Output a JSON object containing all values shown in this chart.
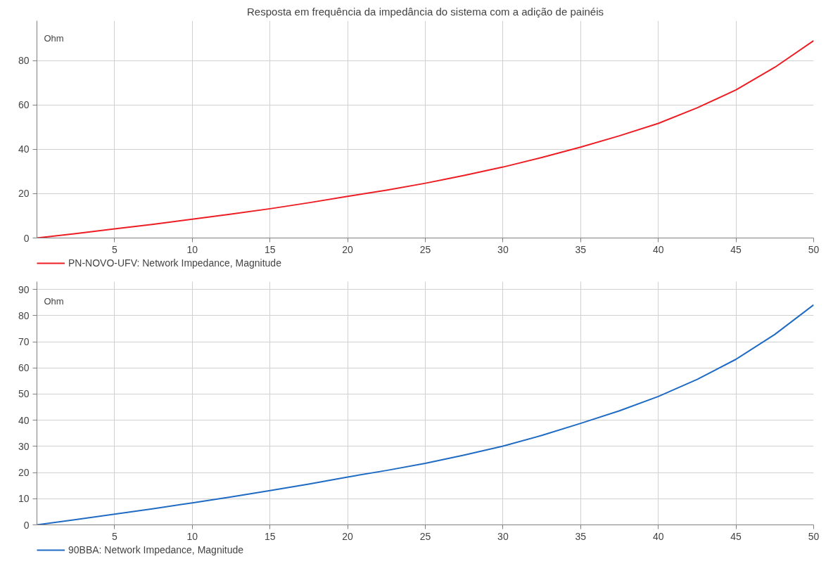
{
  "chart_data": [
    {
      "type": "line",
      "title": "Resposta em frequência da impedância do sistema com a adição de painéis",
      "ylabel": "Ohm",
      "x": [
        0,
        2.5,
        5,
        7.5,
        10,
        12.5,
        15,
        17.5,
        20,
        22.5,
        25,
        27.5,
        30,
        32.5,
        35,
        37.5,
        40,
        42.5,
        45,
        47.5,
        50
      ],
      "series": [
        {
          "name": "PN-NOVO-UFV: Network Impedance, Magnitude",
          "color": "#ee1c23",
          "values": [
            0,
            2.0,
            4.1,
            6.2,
            8.5,
            10.8,
            13.2,
            15.9,
            18.8,
            21.6,
            24.7,
            28.2,
            32,
            36.3,
            41,
            46.1,
            51.7,
            58.7,
            66.8,
            77,
            89
          ]
        }
      ],
      "xlim": [
        0,
        50
      ],
      "xticks": [
        5,
        10,
        15,
        20,
        25,
        30,
        35,
        40,
        45,
        50
      ],
      "ylim": [
        0,
        98
      ],
      "yticks": [
        0,
        20,
        40,
        60,
        80
      ],
      "grid": true,
      "legend": "bottom left",
      "line_style": "solid"
    },
    {
      "type": "line",
      "ylabel": "Ohm",
      "x": [
        0,
        2.5,
        5,
        7.5,
        10,
        12.5,
        15,
        17.5,
        20,
        22.5,
        25,
        27.5,
        30,
        32.5,
        35,
        37.5,
        40,
        42.5,
        45,
        47.5,
        50
      ],
      "series": [
        {
          "name": "90BBA: Network Impedance, Magnitude",
          "color": "#1f6bc4",
          "values": [
            0,
            2.0,
            4.1,
            6.2,
            8.4,
            10.7,
            13.1,
            15.6,
            18.3,
            20.8,
            23.5,
            26.7,
            30.1,
            34.2,
            38.8,
            43.6,
            49.1,
            55.6,
            63.3,
            72.8,
            84.1
          ]
        }
      ],
      "xlim": [
        0,
        50
      ],
      "xticks": [
        5,
        10,
        15,
        20,
        25,
        30,
        35,
        40,
        45,
        50
      ],
      "ylim": [
        0,
        93
      ],
      "yticks": [
        0,
        10,
        20,
        30,
        40,
        50,
        60,
        70,
        80,
        90
      ],
      "grid": true,
      "legend": "bottom left",
      "line_style": "solid"
    }
  ]
}
